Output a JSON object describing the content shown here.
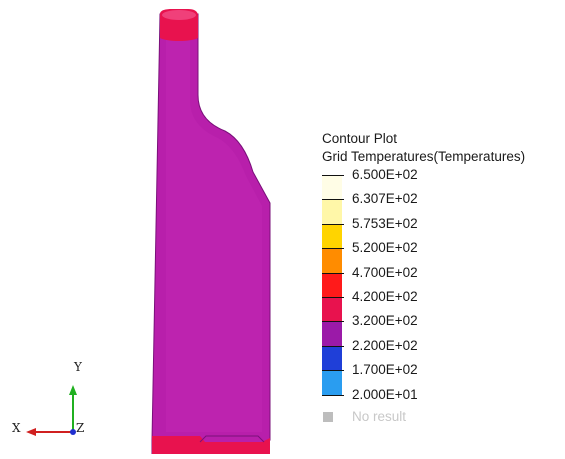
{
  "legend": {
    "title": "Contour Plot",
    "subtitle": "Grid Temperatures(Temperatures)",
    "levels": [
      {
        "label": "6.500E+02",
        "color": "#fffde6"
      },
      {
        "label": "6.307E+02",
        "color": "#fff7a8"
      },
      {
        "label": "5.753E+02",
        "color": "#ffd400"
      },
      {
        "label": "5.200E+02",
        "color": "#ff8c00"
      },
      {
        "label": "4.700E+02",
        "color": "#ff1a1a"
      },
      {
        "label": "4.200E+02",
        "color": "#e8124e"
      },
      {
        "label": "3.200E+02",
        "color": "#9b1aa8"
      },
      {
        "label": "2.200E+02",
        "color": "#1f3fd8"
      },
      {
        "label": "1.700E+02",
        "color": "#2a9df0"
      },
      {
        "label": "2.000E+01",
        "color": ""
      }
    ],
    "no_result_label": "No result",
    "no_result_color": "#bdbdbd"
  },
  "triad": {
    "x_label": "X",
    "y_label": "Y",
    "z_label": "Z"
  },
  "colors": {
    "part_body": "#b81fab",
    "part_cap": "#e8124e",
    "part_edge": "#7a107a",
    "axis_x": "#d02020",
    "axis_y": "#20b020",
    "axis_z": "#2030d0"
  }
}
